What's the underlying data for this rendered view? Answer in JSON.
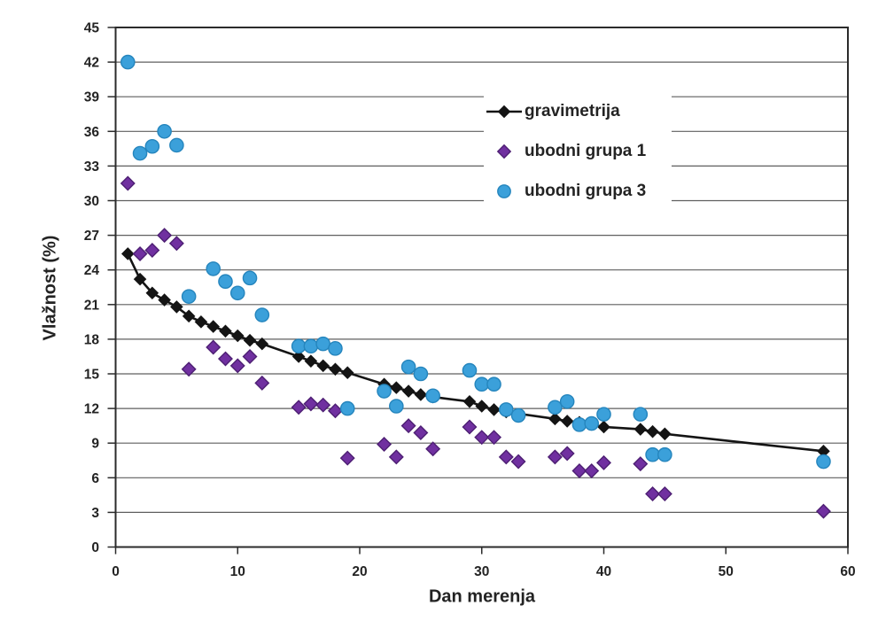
{
  "chart_data": {
    "type": "scatter",
    "title": "",
    "xlabel": "Dan merenja",
    "ylabel": "Vlažnost (%)",
    "xlim": [
      0,
      60
    ],
    "ylim": [
      0,
      45
    ],
    "xtick_step": 10,
    "ytick_step": 3,
    "grid": "horizontal",
    "legend_position": "upper-right-inside",
    "colors": {
      "frame": "#2b2b2b",
      "gridline": "#5f5f5f",
      "tick_text": "#232323"
    },
    "series": [
      {
        "name": "gravimetrija",
        "marker": "diamond",
        "line": true,
        "color": "#141414",
        "stroke": "#141414",
        "marker_size": 6.3,
        "points": [
          [
            1,
            25.4
          ],
          [
            2,
            23.2
          ],
          [
            3,
            22.0
          ],
          [
            4,
            21.4
          ],
          [
            5,
            20.8
          ],
          [
            6,
            20.0
          ],
          [
            7,
            19.5
          ],
          [
            8,
            19.1
          ],
          [
            9,
            18.7
          ],
          [
            10,
            18.3
          ],
          [
            11,
            17.9
          ],
          [
            12,
            17.6
          ],
          [
            15,
            16.5
          ],
          [
            16,
            16.1
          ],
          [
            17,
            15.7
          ],
          [
            18,
            15.4
          ],
          [
            19,
            15.1
          ],
          [
            22,
            14.1
          ],
          [
            23,
            13.8
          ],
          [
            24,
            13.5
          ],
          [
            25,
            13.2
          ],
          [
            26,
            13.0
          ],
          [
            29,
            12.6
          ],
          [
            30,
            12.2
          ],
          [
            31,
            11.9
          ],
          [
            32,
            11.7
          ],
          [
            36,
            11.1
          ],
          [
            37,
            10.9
          ],
          [
            38,
            10.8
          ],
          [
            40,
            10.4
          ],
          [
            43,
            10.2
          ],
          [
            44,
            10.0
          ],
          [
            45,
            9.8
          ],
          [
            58,
            8.3
          ]
        ]
      },
      {
        "name": "ubodni grupa 1",
        "marker": "diamond",
        "line": false,
        "color": "#7030a0",
        "stroke": "#4d1f73",
        "marker_size": 7.5,
        "points": [
          [
            1,
            31.5
          ],
          [
            2,
            25.4
          ],
          [
            3,
            25.7
          ],
          [
            4,
            27.0
          ],
          [
            5,
            26.3
          ],
          [
            6,
            15.4
          ],
          [
            8,
            17.3
          ],
          [
            9,
            16.3
          ],
          [
            10,
            15.7
          ],
          [
            11,
            16.5
          ],
          [
            12,
            14.2
          ],
          [
            15,
            12.1
          ],
          [
            16,
            12.4
          ],
          [
            17,
            12.3
          ],
          [
            18,
            11.8
          ],
          [
            19,
            7.7
          ],
          [
            22,
            8.9
          ],
          [
            23,
            7.8
          ],
          [
            24,
            10.5
          ],
          [
            25,
            9.9
          ],
          [
            26,
            8.5
          ],
          [
            29,
            10.4
          ],
          [
            30,
            9.5
          ],
          [
            31,
            9.5
          ],
          [
            32,
            7.8
          ],
          [
            33,
            7.4
          ],
          [
            36,
            7.8
          ],
          [
            37,
            8.1
          ],
          [
            38,
            6.6
          ],
          [
            39,
            6.6
          ],
          [
            40,
            7.3
          ],
          [
            43,
            7.2
          ],
          [
            44,
            4.6
          ],
          [
            45,
            4.6
          ],
          [
            58,
            3.1
          ]
        ]
      },
      {
        "name": "ubodni grupa 3",
        "marker": "circle",
        "line": false,
        "color": "#3ba0da",
        "stroke": "#2585bd",
        "marker_size": 7.6,
        "points": [
          [
            1,
            42.0
          ],
          [
            2,
            34.1
          ],
          [
            3,
            34.7
          ],
          [
            4,
            36.0
          ],
          [
            5,
            34.8
          ],
          [
            6,
            21.7
          ],
          [
            8,
            24.1
          ],
          [
            9,
            23.0
          ],
          [
            10,
            22.0
          ],
          [
            11,
            23.3
          ],
          [
            12,
            20.1
          ],
          [
            15,
            17.4
          ],
          [
            16,
            17.4
          ],
          [
            17,
            17.6
          ],
          [
            18,
            17.2
          ],
          [
            19,
            12.0
          ],
          [
            22,
            13.5
          ],
          [
            23,
            12.2
          ],
          [
            24,
            15.6
          ],
          [
            25,
            15.0
          ],
          [
            26,
            13.1
          ],
          [
            29,
            15.3
          ],
          [
            30,
            14.1
          ],
          [
            31,
            14.1
          ],
          [
            32,
            11.9
          ],
          [
            33,
            11.4
          ],
          [
            36,
            12.1
          ],
          [
            37,
            12.6
          ],
          [
            38,
            10.6
          ],
          [
            39,
            10.7
          ],
          [
            40,
            11.5
          ],
          [
            43,
            11.5
          ],
          [
            44,
            8.0
          ],
          [
            45,
            8.0
          ],
          [
            58,
            7.4
          ]
        ]
      }
    ]
  }
}
